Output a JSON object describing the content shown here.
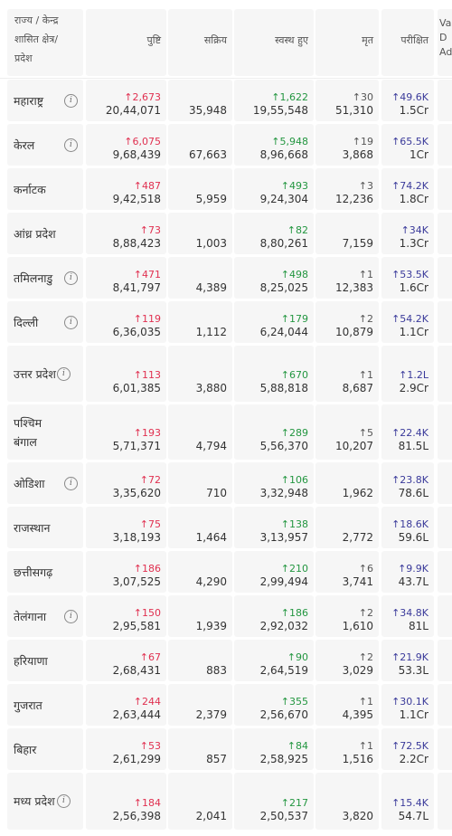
{
  "headers": {
    "state": "राज्य / केन्द्र शासित क्षेत्र/ प्रदेश",
    "confirmed": "पुष्टि",
    "active": "सक्रिय",
    "recovered": "स्वस्थ हुए",
    "deceased": "मृत",
    "tested": "परीक्षित",
    "cut_lines": [
      "Va",
      "D",
      "Ad"
    ]
  },
  "rows": [
    {
      "state": "महाराष्ट्र",
      "info": true,
      "confirmed_delta": "↑2,673",
      "confirmed": "20,44,071",
      "active": "35,948",
      "recovered_delta": "↑1,622",
      "recovered": "19,55,548",
      "deceased_delta": "↑30",
      "deceased": "51,310",
      "tested_delta": "↑49.6K",
      "tested": "1.5Cr"
    },
    {
      "state": "केरल",
      "info": true,
      "confirmed_delta": "↑6,075",
      "confirmed": "9,68,439",
      "active": "67,663",
      "recovered_delta": "↑5,948",
      "recovered": "8,96,668",
      "deceased_delta": "↑19",
      "deceased": "3,868",
      "tested_delta": "↑65.5K",
      "tested": "1Cr"
    },
    {
      "state": "कर्नाटक",
      "info": false,
      "confirmed_delta": "↑487",
      "confirmed": "9,42,518",
      "active": "5,959",
      "recovered_delta": "↑493",
      "recovered": "9,24,304",
      "deceased_delta": "↑3",
      "deceased": "12,236",
      "tested_delta": "↑74.2K",
      "tested": "1.8Cr"
    },
    {
      "state": "आंध्र प्रदेश",
      "info": false,
      "confirmed_delta": "↑73",
      "confirmed": "8,88,423",
      "active": "1,003",
      "recovered_delta": "↑82",
      "recovered": "8,80,261",
      "deceased_delta": "",
      "deceased": "7,159",
      "tested_delta": "↑34K",
      "tested": "1.3Cr"
    },
    {
      "state": "तमिलनाडु",
      "info": true,
      "confirmed_delta": "↑471",
      "confirmed": "8,41,797",
      "active": "4,389",
      "recovered_delta": "↑498",
      "recovered": "8,25,025",
      "deceased_delta": "↑1",
      "deceased": "12,383",
      "tested_delta": "↑53.5K",
      "tested": "1.6Cr"
    },
    {
      "state": "दिल्ली",
      "info": true,
      "confirmed_delta": "↑119",
      "confirmed": "6,36,035",
      "active": "1,112",
      "recovered_delta": "↑179",
      "recovered": "6,24,044",
      "deceased_delta": "↑2",
      "deceased": "10,879",
      "tested_delta": "↑54.2K",
      "tested": "1.1Cr"
    },
    {
      "state": "उत्तर प्रदेश",
      "info": true,
      "confirmed_delta": "↑113",
      "confirmed": "6,01,385",
      "active": "3,880",
      "recovered_delta": "↑670",
      "recovered": "5,88,818",
      "deceased_delta": "↑1",
      "deceased": "8,687",
      "tested_delta": "↑1.2L",
      "tested": "2.9Cr"
    },
    {
      "state": "पश्चिम बंगाल",
      "info": false,
      "confirmed_delta": "↑193",
      "confirmed": "5,71,371",
      "active": "4,794",
      "recovered_delta": "↑289",
      "recovered": "5,56,370",
      "deceased_delta": "↑5",
      "deceased": "10,207",
      "tested_delta": "↑22.4K",
      "tested": "81.5L"
    },
    {
      "state": "ओडिशा",
      "info": true,
      "confirmed_delta": "↑72",
      "confirmed": "3,35,620",
      "active": "710",
      "recovered_delta": "↑106",
      "recovered": "3,32,948",
      "deceased_delta": "",
      "deceased": "1,962",
      "tested_delta": "↑23.8K",
      "tested": "78.6L"
    },
    {
      "state": "राजस्थान",
      "info": false,
      "confirmed_delta": "↑75",
      "confirmed": "3,18,193",
      "active": "1,464",
      "recovered_delta": "↑138",
      "recovered": "3,13,957",
      "deceased_delta": "",
      "deceased": "2,772",
      "tested_delta": "↑18.6K",
      "tested": "59.6L"
    },
    {
      "state": "छत्तीसगढ़",
      "info": false,
      "confirmed_delta": "↑186",
      "confirmed": "3,07,525",
      "active": "4,290",
      "recovered_delta": "↑210",
      "recovered": "2,99,494",
      "deceased_delta": "↑6",
      "deceased": "3,741",
      "tested_delta": "↑9.9K",
      "tested": "43.7L"
    },
    {
      "state": "तेलंगाना",
      "info": true,
      "confirmed_delta": "↑150",
      "confirmed": "2,95,581",
      "active": "1,939",
      "recovered_delta": "↑186",
      "recovered": "2,92,032",
      "deceased_delta": "↑2",
      "deceased": "1,610",
      "tested_delta": "↑34.8K",
      "tested": "81L"
    },
    {
      "state": "हरियाणा",
      "info": false,
      "confirmed_delta": "↑67",
      "confirmed": "2,68,431",
      "active": "883",
      "recovered_delta": "↑90",
      "recovered": "2,64,519",
      "deceased_delta": "↑2",
      "deceased": "3,029",
      "tested_delta": "↑21.9K",
      "tested": "53.3L"
    },
    {
      "state": "गुजरात",
      "info": false,
      "confirmed_delta": "↑244",
      "confirmed": "2,63,444",
      "active": "2,379",
      "recovered_delta": "↑355",
      "recovered": "2,56,670",
      "deceased_delta": "↑1",
      "deceased": "4,395",
      "tested_delta": "↑30.1K",
      "tested": "1.1Cr"
    },
    {
      "state": "बिहार",
      "info": false,
      "confirmed_delta": "↑53",
      "confirmed": "2,61,299",
      "active": "857",
      "recovered_delta": "↑84",
      "recovered": "2,58,925",
      "deceased_delta": "↑1",
      "deceased": "1,516",
      "tested_delta": "↑72.5K",
      "tested": "2.2Cr"
    },
    {
      "state": "मध्य प्रदेश",
      "info": true,
      "confirmed_delta": "↑184",
      "confirmed": "2,56,398",
      "active": "2,041",
      "recovered_delta": "↑217",
      "recovered": "2,50,537",
      "deceased_delta": "",
      "deceased": "3,820",
      "tested_delta": "↑15.4K",
      "tested": "54.7L"
    }
  ],
  "colors": {
    "confirmed_delta": "#e03050",
    "recovered_delta": "#239640",
    "tested": "#3a3a9a"
  }
}
